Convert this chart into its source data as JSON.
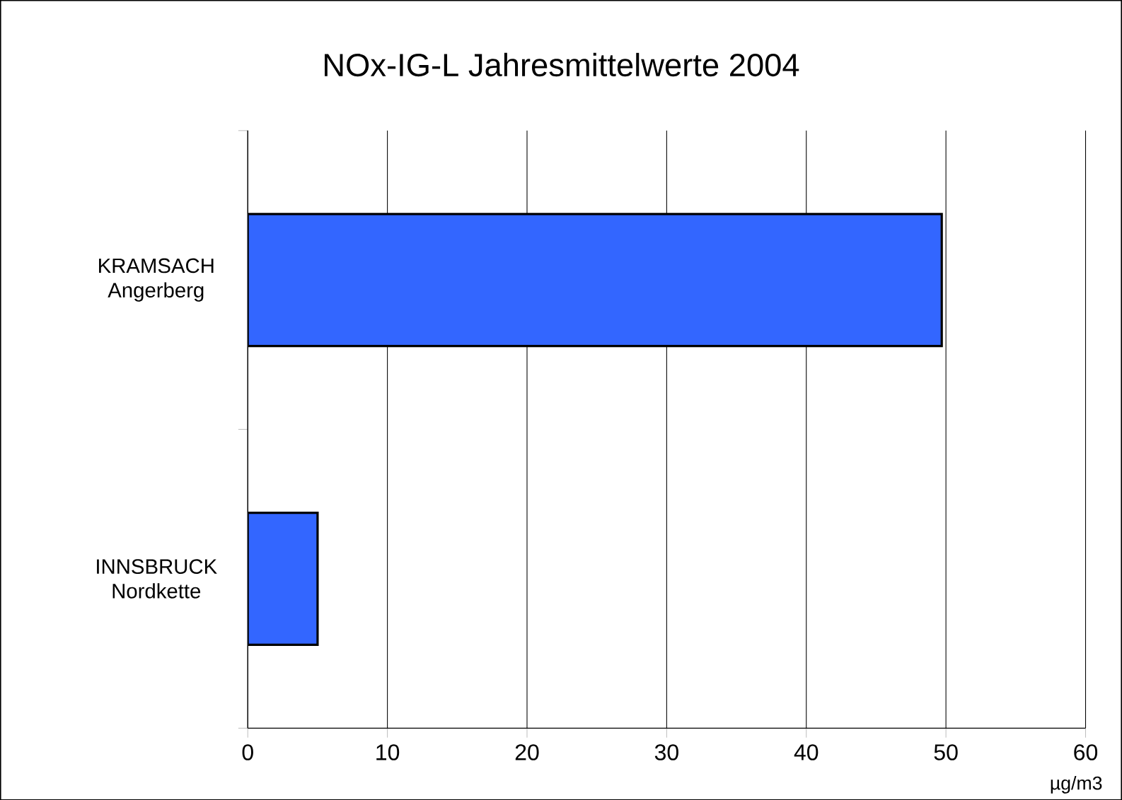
{
  "chart_data": {
    "type": "bar",
    "orientation": "horizontal",
    "title": "NOx-IG-L Jahresmittelwerte 2004",
    "xlabel": "µg/m3",
    "categories": [
      "KRAMSACH Angerberg",
      "INNSBRUCK Nordkette"
    ],
    "values": [
      49.7,
      5.0
    ],
    "color": "#3366ff",
    "xlim": [
      0,
      60
    ],
    "xticks": [
      0,
      10,
      20,
      30,
      40,
      50,
      60
    ],
    "grid": "x"
  }
}
